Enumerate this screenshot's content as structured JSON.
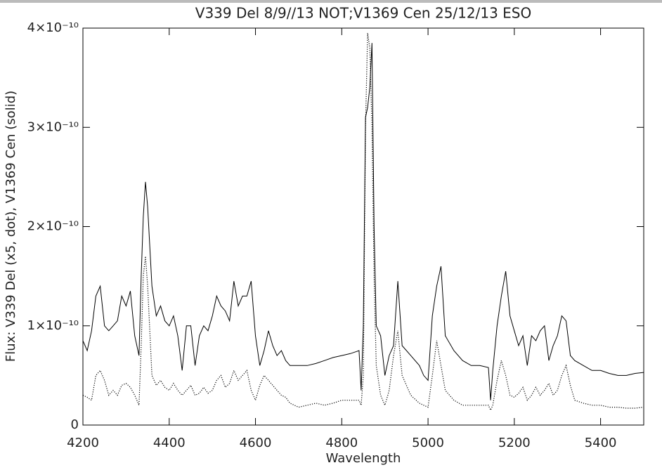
{
  "chart_data": {
    "type": "line",
    "title": "V339 Del 8/9//13 NOT;V1369 Cen 25/12/13 ESO",
    "x_label": "Wavelength",
    "y_label": "Flux: V339 Del (x5, dot), V1369 Cen (solid)",
    "xlim": [
      4200,
      5500
    ],
    "ylim": [
      0,
      4e-10
    ],
    "xticks": [
      4200,
      4400,
      4600,
      4800,
      5000,
      5200,
      5400
    ],
    "yticks": [
      0,
      {
        "value": 1e-10,
        "label": "1×10⁻¹⁰"
      },
      {
        "value": 2e-10,
        "label": "2×10⁻¹⁰"
      },
      {
        "value": 3e-10,
        "label": "3×10⁻¹⁰"
      },
      {
        "value": 4e-10,
        "label": "4×10⁻¹⁰"
      }
    ],
    "x": [
      4200,
      4210,
      4220,
      4230,
      4240,
      4250,
      4260,
      4270,
      4280,
      4290,
      4300,
      4310,
      4320,
      4330,
      4335,
      4340,
      4345,
      4350,
      4360,
      4370,
      4380,
      4390,
      4400,
      4410,
      4420,
      4430,
      4440,
      4450,
      4460,
      4470,
      4480,
      4490,
      4500,
      4510,
      4520,
      4530,
      4540,
      4550,
      4560,
      4570,
      4580,
      4590,
      4600,
      4610,
      4620,
      4630,
      4640,
      4650,
      4660,
      4670,
      4680,
      4700,
      4720,
      4740,
      4760,
      4780,
      4800,
      4820,
      4840,
      4845,
      4850,
      4855,
      4860,
      4865,
      4870,
      4875,
      4880,
      4890,
      4900,
      4910,
      4920,
      4930,
      4940,
      4960,
      4980,
      4990,
      5000,
      5010,
      5020,
      5030,
      5040,
      5060,
      5080,
      5100,
      5120,
      5140,
      5145,
      5150,
      5160,
      5170,
      5180,
      5190,
      5200,
      5210,
      5220,
      5230,
      5240,
      5250,
      5260,
      5270,
      5280,
      5290,
      5300,
      5310,
      5320,
      5330,
      5340,
      5360,
      5380,
      5400,
      5420,
      5440,
      5460,
      5480,
      5500
    ],
    "series": [
      {
        "color": "#000000",
        "line_style": "solid",
        "values": [
          8.5e-11,
          7.5e-11,
          9.5e-11,
          1.3e-10,
          1.4e-10,
          1e-10,
          9.5e-11,
          1e-10,
          1.05e-10,
          1.3e-10,
          1.2e-10,
          1.35e-10,
          9e-11,
          7e-11,
          1.5e-10,
          2.1e-10,
          2.45e-10,
          2.2e-10,
          1.4e-10,
          1.1e-10,
          1.2e-10,
          1.05e-10,
          1e-10,
          1.1e-10,
          9e-11,
          5.5e-11,
          1e-10,
          1e-10,
          6e-11,
          9e-11,
          1e-10,
          9.5e-11,
          1.1e-10,
          1.3e-10,
          1.2e-10,
          1.15e-10,
          1.05e-10,
          1.45e-10,
          1.2e-10,
          1.3e-10,
          1.3e-10,
          1.45e-10,
          9e-11,
          6e-11,
          7.5e-11,
          9.5e-11,
          8e-11,
          7e-11,
          7.5e-11,
          6.5e-11,
          6e-11,
          6e-11,
          6e-11,
          6.2e-11,
          6.5e-11,
          6.8e-11,
          7e-11,
          7.2e-11,
          7.5e-11,
          3.5e-11,
          1e-10,
          3.1e-10,
          3.2e-10,
          3.4e-10,
          3.85e-10,
          2e-10,
          1e-10,
          9e-11,
          5e-11,
          7e-11,
          8e-11,
          1.45e-10,
          8e-11,
          7e-11,
          6e-11,
          5e-11,
          4.5e-11,
          1.1e-10,
          1.4e-10,
          1.6e-10,
          9e-11,
          7.5e-11,
          6.5e-11,
          6e-11,
          6e-11,
          5.8e-11,
          2.5e-11,
          5.5e-11,
          1e-10,
          1.3e-10,
          1.55e-10,
          1.1e-10,
          9.5e-11,
          8e-11,
          9e-11,
          6e-11,
          9e-11,
          8.5e-11,
          9.5e-11,
          1e-10,
          6.5e-11,
          8e-11,
          9e-11,
          1.1e-10,
          1.05e-10,
          7e-11,
          6.5e-11,
          6e-11,
          5.5e-11,
          5.5e-11,
          5.2e-11,
          5e-11,
          5e-11,
          5.2e-11,
          5.3e-11
        ]
      },
      {
        "color": "#000000",
        "line_style": "dotted",
        "values": [
          3e-11,
          2.8e-11,
          2.5e-11,
          5e-11,
          5.5e-11,
          4.5e-11,
          3e-11,
          3.5e-11,
          3e-11,
          4e-11,
          4.2e-11,
          3.8e-11,
          3e-11,
          2e-11,
          8e-11,
          1.5e-10,
          1.7e-10,
          1.4e-10,
          5e-11,
          4e-11,
          4.5e-11,
          3.8e-11,
          3.5e-11,
          4.2e-11,
          3.5e-11,
          3e-11,
          3.5e-11,
          4e-11,
          3e-11,
          3.2e-11,
          3.8e-11,
          3.2e-11,
          3.5e-11,
          4.5e-11,
          5e-11,
          3.8e-11,
          4.2e-11,
          5.5e-11,
          4.5e-11,
          5e-11,
          5.5e-11,
          3.5e-11,
          2.5e-11,
          4e-11,
          5e-11,
          4.5e-11,
          4e-11,
          3.5e-11,
          3e-11,
          2.8e-11,
          2.2e-11,
          1.8e-11,
          2e-11,
          2.2e-11,
          2e-11,
          2.2e-11,
          2.5e-11,
          2.5e-11,
          2.5e-11,
          2e-11,
          5e-11,
          3e-10,
          3.95e-10,
          3.8e-10,
          3e-10,
          1.5e-10,
          6e-11,
          3e-11,
          2e-11,
          3.5e-11,
          7e-11,
          9.5e-11,
          5e-11,
          3e-11,
          2.2e-11,
          2e-11,
          1.8e-11,
          5e-11,
          8.5e-11,
          6e-11,
          3.5e-11,
          2.5e-11,
          2e-11,
          2e-11,
          2e-11,
          2e-11,
          1.5e-11,
          2e-11,
          4.5e-11,
          6.5e-11,
          5e-11,
          3e-11,
          2.8e-11,
          3.2e-11,
          3.8e-11,
          2.5e-11,
          3e-11,
          3.8e-11,
          3e-11,
          3.5e-11,
          4.2e-11,
          3e-11,
          3.5e-11,
          5e-11,
          6e-11,
          4e-11,
          2.5e-11,
          2.2e-11,
          2e-11,
          2e-11,
          1.8e-11,
          1.8e-11,
          1.7e-11,
          1.7e-11,
          1.8e-11
        ]
      }
    ]
  }
}
